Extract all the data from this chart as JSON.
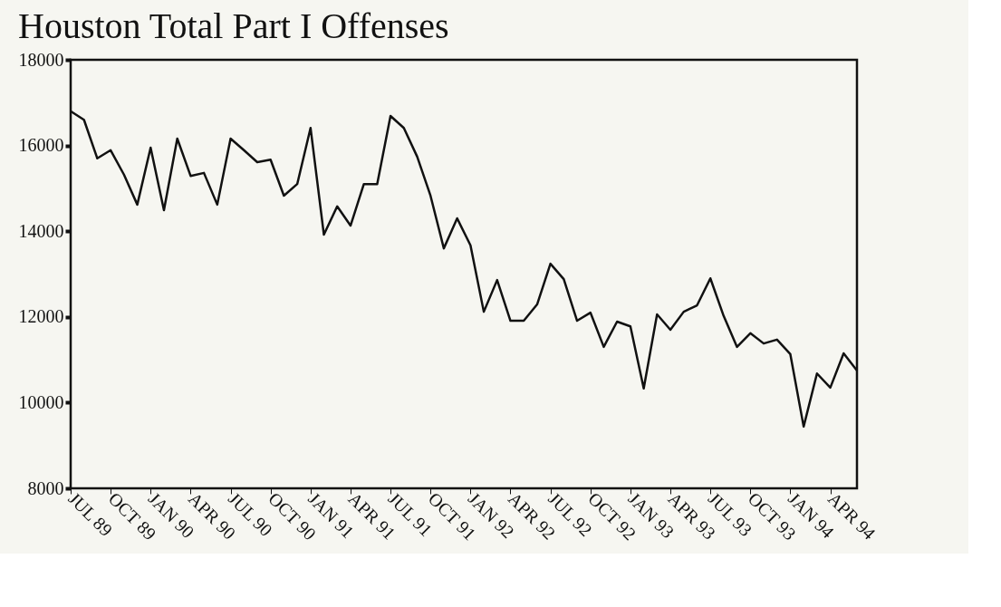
{
  "chart_data": {
    "type": "line",
    "title": "Houston Total Part I Offenses",
    "categories": [
      "JUL 89",
      null,
      null,
      "OCT 89",
      null,
      null,
      "JAN 90",
      null,
      null,
      "APR 90",
      null,
      null,
      "JUL 90",
      null,
      null,
      "OCT 90",
      null,
      null,
      "JAN 91",
      null,
      null,
      "APR 91",
      null,
      null,
      "JUL 91",
      null,
      null,
      "OCT 91",
      null,
      null,
      "JAN 92",
      null,
      null,
      "APR 92",
      null,
      null,
      "JUL 92",
      null,
      null,
      "OCT 92",
      null,
      null,
      "JAN 93",
      null,
      null,
      "APR 93",
      null,
      null,
      "JUL 93",
      null,
      null,
      "OCT 93",
      null,
      null,
      "JAN 94",
      null,
      null,
      "APR 94",
      null,
      null
    ],
    "series": [
      {
        "color": "#111111",
        "values": [
          16800,
          16600,
          15700,
          15890,
          15320,
          14620,
          15950,
          14490,
          16160,
          15290,
          15360,
          14620,
          16160,
          15890,
          15610,
          15670,
          14830,
          15100,
          16410,
          13920,
          14580,
          14130,
          15100,
          15100,
          16690,
          16410,
          15740,
          14830,
          13600,
          14300,
          13670,
          12120,
          12860,
          11910,
          11910,
          12290,
          13240,
          12880,
          11910,
          12100,
          11300,
          11890,
          11780,
          10330,
          12060,
          11700,
          12120,
          12270,
          12900,
          12020,
          11300,
          11620,
          11380,
          11470,
          11130,
          9440,
          10680,
          10350,
          11150,
          10750
        ]
      }
    ],
    "ylim": [
      8000,
      18000
    ],
    "yticks": [
      8000,
      10000,
      12000,
      14000,
      16000,
      18000
    ],
    "grid": false,
    "legend": false,
    "marker": "none",
    "line_style": "solid"
  }
}
